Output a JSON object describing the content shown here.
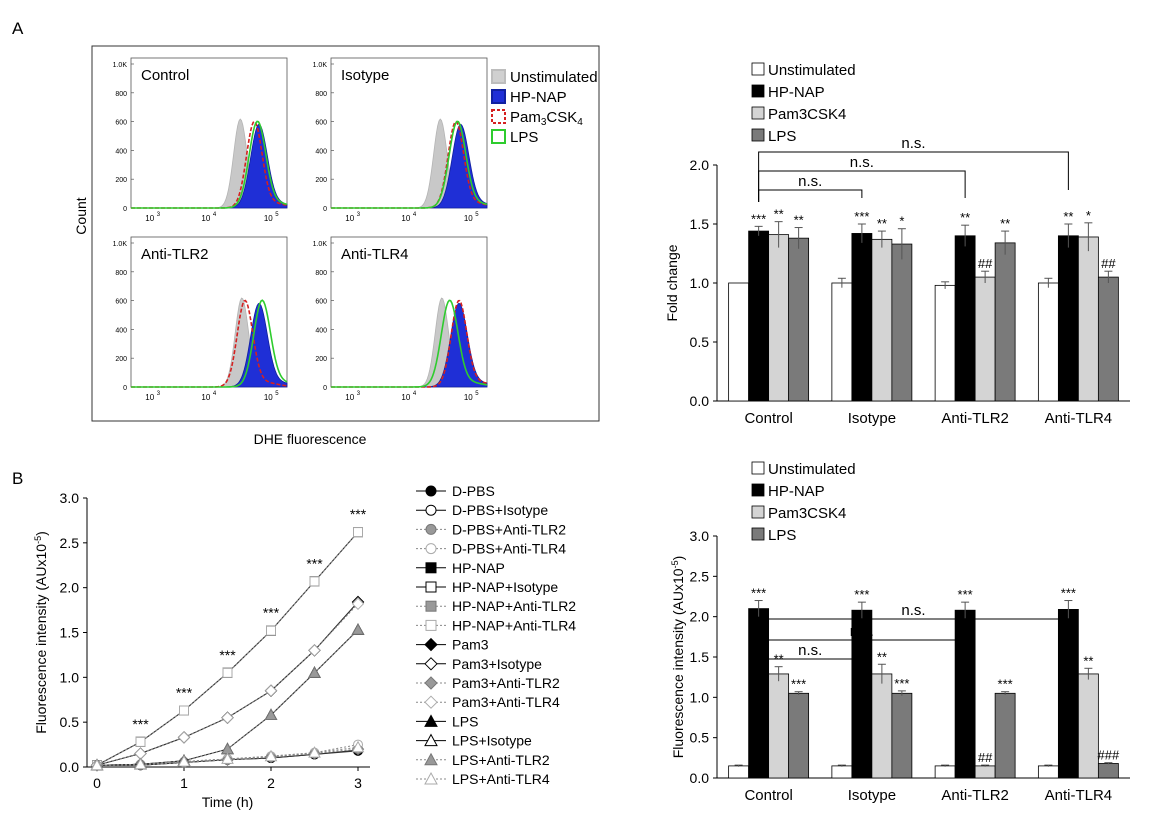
{
  "panelA": {
    "label": "A",
    "flow": {
      "ylabel": "Count",
      "xlabel": "DHE fluorescence",
      "yticks": [
        "1.0K",
        "800",
        "600",
        "400",
        "200",
        "0"
      ],
      "xticks": [
        "10",
        "10",
        "10"
      ],
      "xticks_exp": [
        "3",
        "4",
        "5"
      ],
      "panels": [
        {
          "title": "Control"
        },
        {
          "title": "Isotype"
        },
        {
          "title": "Anti-TLR2"
        },
        {
          "title": "Anti-TLR4"
        }
      ],
      "legend": [
        {
          "label": "Unstimulated"
        },
        {
          "label": "HP-NAP"
        },
        {
          "label": "Pam",
          "sub": "3",
          "rest": "CSK",
          "sub2": "4"
        },
        {
          "label": "LPS"
        }
      ]
    },
    "bar": {
      "legend": [
        "Unstimulated",
        "HP-NAP",
        "Pam3CSK4",
        "LPS"
      ],
      "ns": [
        "n.s.",
        "n.s.",
        "n.s."
      ]
    }
  },
  "panelB": {
    "label": "B",
    "line_legend": [
      "D-PBS",
      "D-PBS+Isotype",
      "D-PBS+Anti-TLR2",
      "D-PBS+Anti-TLR4",
      "HP-NAP",
      "HP-NAP+Isotype",
      "HP-NAP+Anti-TLR2",
      "HP-NAP+Anti-TLR4",
      "Pam3",
      "Pam3+Isotype",
      "Pam3+Anti-TLR2",
      "Pam3+Anti-TLR4",
      "LPS",
      "LPS+Isotype",
      "LPS+Anti-TLR2",
      "LPS+Anti-TLR4"
    ],
    "bar": {
      "legend": [
        "Unstimulated",
        "HP-NAP",
        "Pam3CSK4",
        "LPS"
      ],
      "ns": [
        "n.s.",
        "n.s.",
        "n.s."
      ]
    }
  },
  "chart_data": [
    {
      "id": "A-bar",
      "type": "bar",
      "title": "",
      "xlabel": "",
      "ylabel": "Fold change",
      "ylim": [
        0,
        2.0
      ],
      "yticks": [
        "0.0",
        "0.5",
        "1.0",
        "1.5",
        "2.0"
      ],
      "categories": [
        "Control",
        "Isotype",
        "Anti-TLR2",
        "Anti-TLR4"
      ],
      "series": [
        {
          "name": "Unstimulated",
          "values": [
            1.0,
            1.0,
            0.98,
            1.0
          ],
          "errors": [
            0,
            0.04,
            0.03,
            0.04
          ],
          "labels": [
            "",
            "",
            "",
            ""
          ]
        },
        {
          "name": "HP-NAP",
          "values": [
            1.44,
            1.42,
            1.4,
            1.4
          ],
          "errors": [
            0.04,
            0.08,
            0.09,
            0.1
          ],
          "labels": [
            "***",
            "***",
            "**",
            "**"
          ]
        },
        {
          "name": "Pam3CSK4",
          "values": [
            1.41,
            1.37,
            1.05,
            1.39
          ],
          "errors": [
            0.11,
            0.07,
            0.05,
            0.12
          ],
          "labels": [
            "**",
            "**",
            "##",
            "*"
          ]
        },
        {
          "name": "LPS",
          "values": [
            1.38,
            1.33,
            1.34,
            1.05
          ],
          "errors": [
            0.09,
            0.13,
            0.1,
            0.05
          ],
          "labels": [
            "**",
            "*",
            "**",
            "##"
          ]
        }
      ]
    },
    {
      "id": "B-line",
      "type": "line",
      "title": "",
      "xlabel": "Time (h)",
      "ylabel": "Fluorescence intensity (AUx10",
      "ylabel_exp": "-5",
      "xlim": [
        0,
        3
      ],
      "ylim": [
        0,
        3.0
      ],
      "xticks": [
        "0",
        "1",
        "2",
        "3"
      ],
      "yticks": [
        "0.0",
        "0.5",
        "1.0",
        "1.5",
        "2.0",
        "2.5",
        "3.0"
      ],
      "x": [
        0,
        0.5,
        1,
        1.5,
        2,
        2.5,
        3
      ],
      "sig": [
        "",
        "***",
        "***",
        "***",
        "***",
        "***",
        "***"
      ],
      "series": [
        {
          "name": "D-PBS",
          "values": [
            0.02,
            0.02,
            0.05,
            0.08,
            0.1,
            0.14,
            0.18
          ]
        },
        {
          "name": "D-PBS+Isotype",
          "values": [
            0.02,
            0.02,
            0.05,
            0.08,
            0.1,
            0.14,
            0.19
          ]
        },
        {
          "name": "D-PBS+Anti-TLR2",
          "values": [
            0.02,
            0.02,
            0.05,
            0.08,
            0.11,
            0.15,
            0.2
          ]
        },
        {
          "name": "D-PBS+Anti-TLR4",
          "values": [
            0.02,
            0.03,
            0.06,
            0.09,
            0.12,
            0.16,
            0.25
          ]
        },
        {
          "name": "HP-NAP",
          "values": [
            0.02,
            0.28,
            0.63,
            1.05,
            1.52,
            2.07,
            2.62
          ]
        },
        {
          "name": "HP-NAP+Isotype",
          "values": [
            0.02,
            0.28,
            0.63,
            1.05,
            1.52,
            2.07,
            2.62
          ]
        },
        {
          "name": "HP-NAP+Anti-TLR2",
          "values": [
            0.02,
            0.28,
            0.63,
            1.05,
            1.52,
            2.07,
            2.62
          ]
        },
        {
          "name": "HP-NAP+Anti-TLR4",
          "values": [
            0.02,
            0.28,
            0.63,
            1.05,
            1.52,
            2.07,
            2.62
          ]
        },
        {
          "name": "Pam3",
          "values": [
            0.02,
            0.15,
            0.33,
            0.55,
            0.85,
            1.3,
            1.84
          ]
        },
        {
          "name": "Pam3+Isotype",
          "values": [
            0.02,
            0.15,
            0.33,
            0.55,
            0.85,
            1.3,
            1.84
          ]
        },
        {
          "name": "Pam3+Anti-TLR2",
          "values": [
            0.02,
            0.03,
            0.06,
            0.08,
            0.11,
            0.15,
            0.2
          ]
        },
        {
          "name": "Pam3+Anti-TLR4",
          "values": [
            0.02,
            0.15,
            0.33,
            0.55,
            0.85,
            1.3,
            1.82
          ]
        },
        {
          "name": "LPS",
          "values": [
            0.02,
            0.03,
            0.07,
            0.2,
            0.58,
            1.05,
            1.53
          ]
        },
        {
          "name": "LPS+Isotype",
          "values": [
            0.02,
            0.03,
            0.07,
            0.2,
            0.58,
            1.05,
            1.53
          ]
        },
        {
          "name": "LPS+Anti-TLR2",
          "values": [
            0.02,
            0.03,
            0.07,
            0.2,
            0.58,
            1.05,
            1.53
          ]
        },
        {
          "name": "LPS+Anti-TLR4",
          "values": [
            0.02,
            0.03,
            0.06,
            0.09,
            0.12,
            0.16,
            0.22
          ]
        }
      ]
    },
    {
      "id": "B-bar",
      "type": "bar",
      "title": "",
      "xlabel": "",
      "ylabel": "Fluorescence intensity (AUx10",
      "ylabel_exp": "-5",
      "ylim": [
        0,
        3.0
      ],
      "yticks": [
        "0.0",
        "0.5",
        "1.0",
        "1.5",
        "2.0",
        "2.5",
        "3.0"
      ],
      "categories": [
        "Control",
        "Isotype",
        "Anti-TLR2",
        "Anti-TLR4"
      ],
      "series": [
        {
          "name": "Unstimulated",
          "values": [
            0.15,
            0.15,
            0.15,
            0.15
          ],
          "errors": [
            0.01,
            0.01,
            0.01,
            0.01
          ],
          "labels": [
            "",
            "",
            "",
            ""
          ]
        },
        {
          "name": "HP-NAP",
          "values": [
            2.1,
            2.08,
            2.08,
            2.09
          ],
          "errors": [
            0.1,
            0.1,
            0.1,
            0.11
          ],
          "labels": [
            "***",
            "***",
            "***",
            "***"
          ]
        },
        {
          "name": "Pam3CSK4",
          "values": [
            1.29,
            1.29,
            0.15,
            1.29
          ],
          "errors": [
            0.09,
            0.12,
            0.01,
            0.07
          ],
          "labels": [
            "**",
            "**",
            "##",
            "**"
          ]
        },
        {
          "name": "LPS",
          "values": [
            1.05,
            1.05,
            1.05,
            0.18
          ],
          "errors": [
            0.02,
            0.03,
            0.02,
            0.01
          ],
          "labels": [
            "***",
            "***",
            "***",
            "###"
          ]
        }
      ]
    }
  ]
}
